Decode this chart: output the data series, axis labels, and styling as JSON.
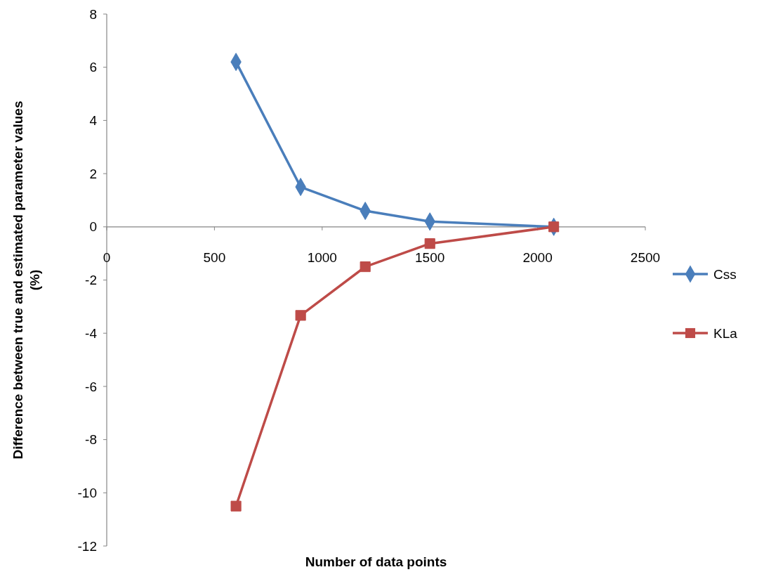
{
  "chart_data": {
    "type": "line",
    "xlabel": "Number of data points",
    "ylabel": "Difference between true and estimated parameter values (%)",
    "xlim": [
      0,
      2500
    ],
    "xticks": [
      0,
      500,
      1000,
      1500,
      2000,
      2500
    ],
    "ylim": [
      -12,
      8
    ],
    "yticks": [
      -12,
      -10,
      -8,
      -6,
      -4,
      -2,
      0,
      2,
      4,
      6,
      8
    ],
    "grid": false,
    "legend": "right",
    "line_style": "solid",
    "series": [
      {
        "name": "Css",
        "color": "#4a7ebb",
        "marker": "diamond",
        "x": [
          600,
          900,
          1200,
          1500,
          2075
        ],
        "values": [
          6.2,
          1.5,
          0.6,
          0.2,
          0
        ]
      },
      {
        "name": "KLa",
        "color": "#be4b48",
        "marker": "square",
        "x": [
          600,
          900,
          1200,
          1500,
          2075
        ],
        "values": [
          -10.5,
          -3.33,
          -1.5,
          -0.63,
          0
        ]
      }
    ]
  }
}
